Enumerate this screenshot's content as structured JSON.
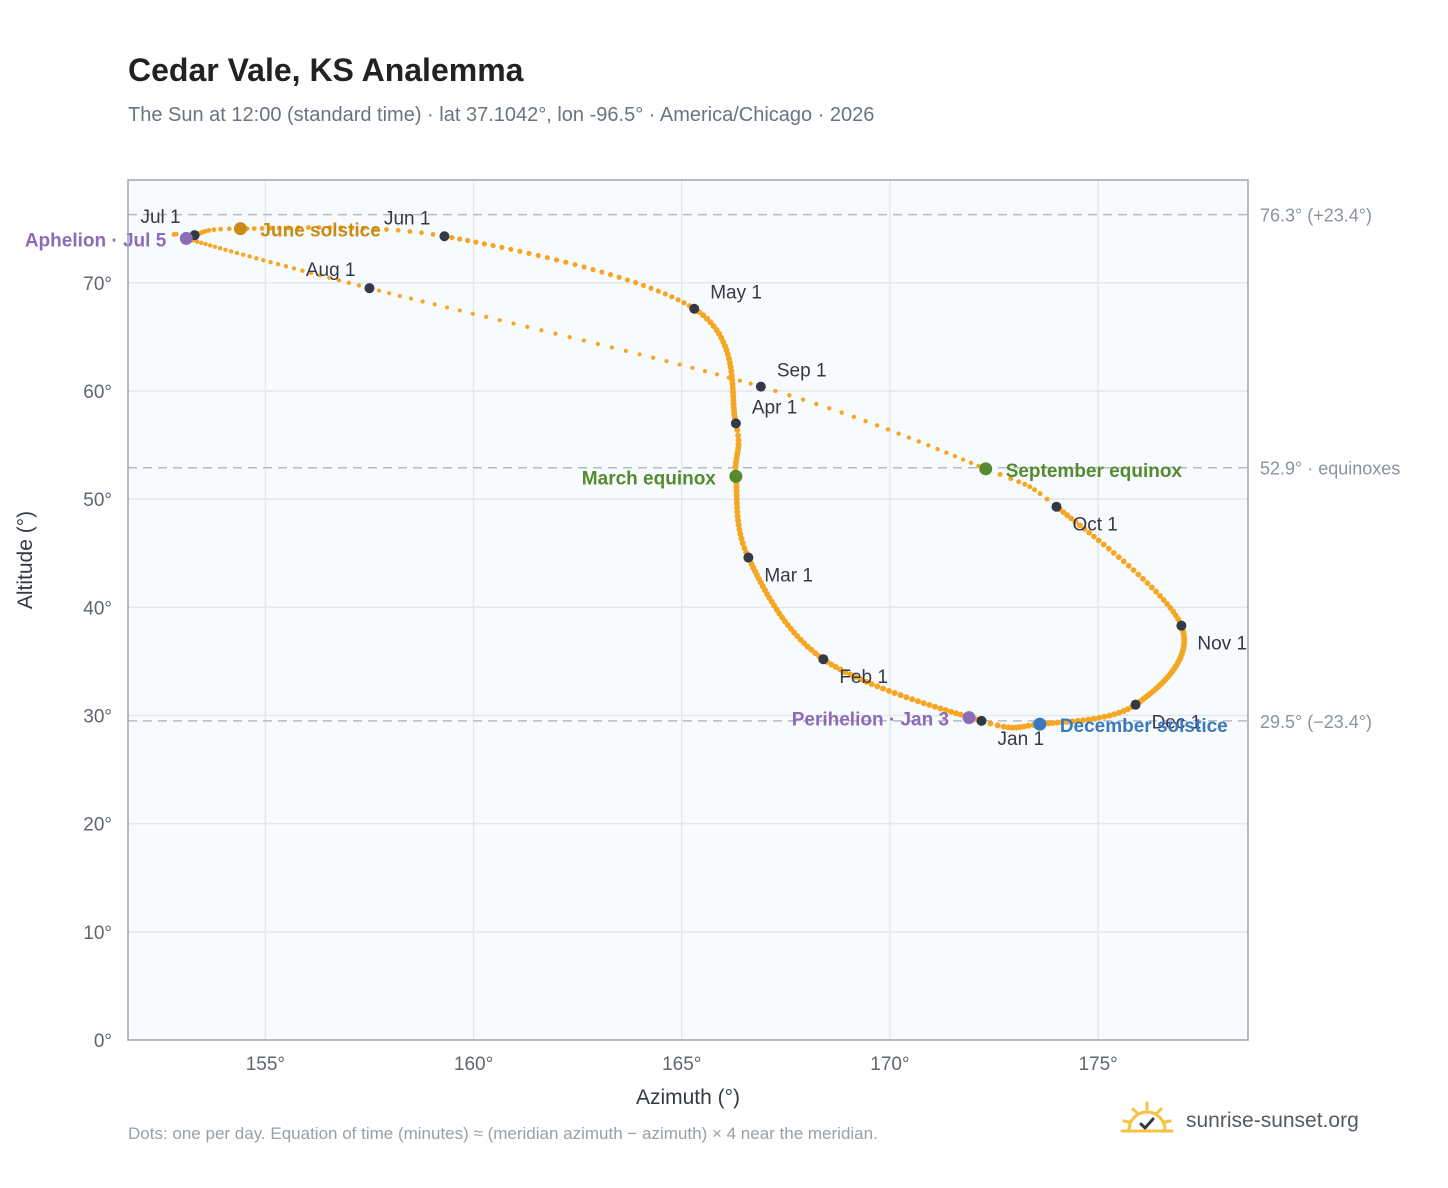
{
  "header": {
    "title": "Cedar Vale, KS Analemma",
    "subtitle": "The Sun at 12:00 (standard time) · lat 37.1042°, lon -96.5° · America/Chicago · 2026"
  },
  "footer": {
    "note": "Dots: one per day. Equation of time (minutes) ≈ (meridian azimuth − azimuth) × 4 near the meridian.",
    "brand": "sunrise-sunset.org"
  },
  "colors": {
    "curve": "#f5a623",
    "month_marker": "#333a45",
    "june_solstice": "#c98b12",
    "december_solstice": "#3a78bd",
    "equinox": "#558b2f",
    "apsis": "#8e6bb8",
    "reference_line": "#b0bcc8",
    "grid": "#e3e8ee",
    "plot_bg": "#f8fbfe",
    "frame": "#9aa6b5"
  },
  "chart_data": {
    "type": "scatter",
    "xlabel": "Azimuth (°)",
    "ylabel": "Altitude (°)",
    "xlim": [
      151.7,
      178.6
    ],
    "ylim": [
      0,
      79.5
    ],
    "xticks": [
      {
        "value": 155,
        "label": "155°"
      },
      {
        "value": 160,
        "label": "160°"
      },
      {
        "value": 165,
        "label": "165°"
      },
      {
        "value": 170,
        "label": "170°"
      },
      {
        "value": 175,
        "label": "175°"
      }
    ],
    "yticks": [
      {
        "value": 0,
        "label": "0°"
      },
      {
        "value": 10,
        "label": "10°"
      },
      {
        "value": 20,
        "label": "20°"
      },
      {
        "value": 30,
        "label": "30°"
      },
      {
        "value": 40,
        "label": "40°"
      },
      {
        "value": 50,
        "label": "50°"
      },
      {
        "value": 60,
        "label": "60°"
      },
      {
        "value": 70,
        "label": "70°"
      }
    ],
    "grid": true,
    "reference_lines": [
      {
        "altitude": 76.3,
        "label": "76.3° (+23.4°)"
      },
      {
        "altitude": 52.9,
        "label": "52.9° · equinoxes"
      },
      {
        "altitude": 29.5,
        "label": "29.5° (−23.4°)"
      }
    ],
    "curve_path": [
      {
        "date": "Jan 1",
        "az": 172.2,
        "alt": 29.5
      },
      {
        "date": "Feb 1",
        "az": 168.4,
        "alt": 35.2
      },
      {
        "date": "Mar 1",
        "az": 166.6,
        "alt": 44.6
      },
      {
        "date": "Mar 20",
        "az": 166.3,
        "alt": 52.1
      },
      {
        "date": "Apr 1",
        "az": 166.3,
        "alt": 57.0
      },
      {
        "date": "May 1",
        "az": 165.3,
        "alt": 67.6
      },
      {
        "date": "Jun 1",
        "az": 159.3,
        "alt": 74.3
      },
      {
        "date": "Jun 21",
        "az": 154.4,
        "alt": 75.0
      },
      {
        "date": "Jul 1",
        "az": 153.3,
        "alt": 74.4
      },
      {
        "date": "Jul 5",
        "az": 153.1,
        "alt": 74.1
      },
      {
        "date": "Aug 1",
        "az": 157.5,
        "alt": 69.5
      },
      {
        "date": "Sep 1",
        "az": 166.9,
        "alt": 60.4
      },
      {
        "date": "Sep 22",
        "az": 172.3,
        "alt": 52.8
      },
      {
        "date": "Oct 1",
        "az": 174.0,
        "alt": 49.3
      },
      {
        "date": "Nov 1",
        "az": 177.0,
        "alt": 38.3
      },
      {
        "date": "Dec 1",
        "az": 175.9,
        "alt": 31.0
      },
      {
        "date": "Dec 21",
        "az": 173.6,
        "alt": 29.2
      },
      {
        "date": "Jan 1",
        "az": 172.2,
        "alt": 29.5
      }
    ],
    "month_markers": [
      {
        "label": "Jan 1",
        "az": 172.2,
        "alt": 29.5,
        "anchor": "below"
      },
      {
        "label": "Feb 1",
        "az": 168.4,
        "alt": 35.2,
        "anchor": "below-right"
      },
      {
        "label": "Mar 1",
        "az": 166.6,
        "alt": 44.6,
        "anchor": "below-right"
      },
      {
        "label": "Apr 1",
        "az": 166.3,
        "alt": 57.0,
        "anchor": "above-right"
      },
      {
        "label": "May 1",
        "az": 165.3,
        "alt": 67.6,
        "anchor": "above-right"
      },
      {
        "label": "Jun 1",
        "az": 159.3,
        "alt": 74.3,
        "anchor": "above-left"
      },
      {
        "label": "Jul 1",
        "az": 153.3,
        "alt": 74.4,
        "anchor": "above-left"
      },
      {
        "label": "Aug 1",
        "az": 157.5,
        "alt": 69.5,
        "anchor": "above-left"
      },
      {
        "label": "Sep 1",
        "az": 166.9,
        "alt": 60.4,
        "anchor": "above-right"
      },
      {
        "label": "Oct 1",
        "az": 174.0,
        "alt": 49.3,
        "anchor": "below-right"
      },
      {
        "label": "Nov 1",
        "az": 177.0,
        "alt": 38.3,
        "anchor": "below-right"
      },
      {
        "label": "Dec 1",
        "az": 175.9,
        "alt": 31.0,
        "anchor": "below-right"
      }
    ],
    "events": [
      {
        "label": "June solstice",
        "az": 154.4,
        "alt": 75.0,
        "color_key": "june_solstice",
        "anchor": "right"
      },
      {
        "label": "December solstice",
        "az": 173.6,
        "alt": 29.2,
        "color_key": "december_solstice",
        "anchor": "right"
      },
      {
        "label": "March equinox",
        "az": 166.3,
        "alt": 52.1,
        "color_key": "equinox",
        "anchor": "left"
      },
      {
        "label": "September equinox",
        "az": 172.3,
        "alt": 52.8,
        "color_key": "equinox",
        "anchor": "right"
      },
      {
        "label": "Aphelion · Jul 5",
        "az": 153.1,
        "alt": 74.1,
        "color_key": "apsis",
        "anchor": "left"
      },
      {
        "label": "Perihelion · Jan 3",
        "az": 171.9,
        "alt": 29.8,
        "color_key": "apsis",
        "anchor": "left"
      }
    ]
  }
}
